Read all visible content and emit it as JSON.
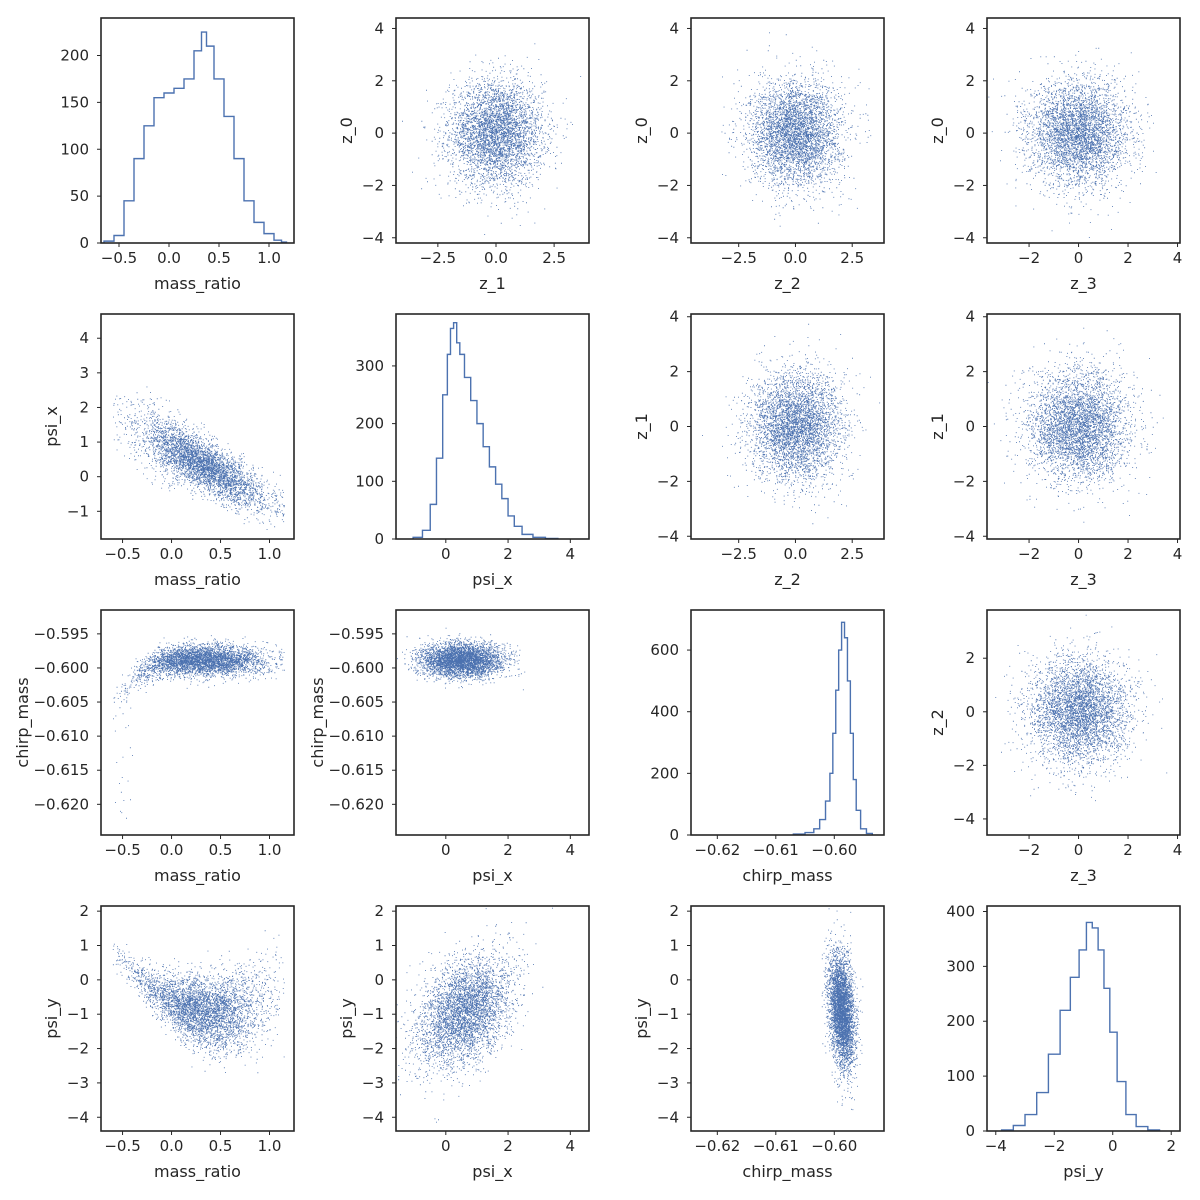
{
  "figure": {
    "background": "#ffffff",
    "marker_color": "#4c72b0",
    "frame_color": "#262626"
  },
  "chart_data": [
    {
      "id": "r0c0",
      "type": "histogram",
      "title": "",
      "xlabel": "mass_ratio",
      "ylabel": "",
      "xlim": [
        -0.68,
        1.25
      ],
      "ylim": [
        0,
        240
      ],
      "xticks": [
        -0.5,
        0.0,
        0.5,
        1.0
      ],
      "xtick_labels": [
        "−0.5",
        "0.0",
        "0.5",
        "1.0"
      ],
      "yticks": [
        0,
        50,
        100,
        150,
        200
      ],
      "ytick_labels": [
        "0",
        "50",
        "100",
        "150",
        "200"
      ],
      "x": [
        -0.6,
        -0.5,
        -0.4,
        -0.3,
        -0.2,
        -0.1,
        0.0,
        0.1,
        0.2,
        0.3,
        0.35,
        0.4,
        0.5,
        0.6,
        0.7,
        0.8,
        0.9,
        1.0,
        1.1,
        1.15
      ],
      "values": [
        2,
        8,
        45,
        90,
        125,
        155,
        160,
        165,
        175,
        205,
        225,
        210,
        175,
        135,
        90,
        45,
        22,
        10,
        3,
        1
      ]
    },
    {
      "id": "r0c1",
      "type": "scatter",
      "title": "",
      "xlabel": "z_1",
      "ylabel": "z_0",
      "xlim": [
        -4.3,
        4.0
      ],
      "ylim": [
        -4.2,
        4.4
      ],
      "xticks": [
        -2.5,
        0.0,
        2.5
      ],
      "xtick_labels": [
        "−2.5",
        "0.0",
        "2.5"
      ],
      "yticks": [
        -4,
        -2,
        0,
        2,
        4
      ],
      "ytick_labels": [
        "−4",
        "−2",
        "0",
        "2",
        "4"
      ],
      "distribution": {
        "form": "gaussian",
        "mean_x": 0.0,
        "mean_y": 0.0,
        "sd_x": 1.0,
        "sd_y": 1.0,
        "n": 4200
      }
    },
    {
      "id": "r0c2",
      "type": "scatter",
      "title": "",
      "xlabel": "z_2",
      "ylabel": "z_0",
      "xlim": [
        -4.6,
        3.9
      ],
      "ylim": [
        -4.2,
        4.4
      ],
      "xticks": [
        -2.5,
        0.0,
        2.5
      ],
      "xtick_labels": [
        "−2.5",
        "0.0",
        "2.5"
      ],
      "yticks": [
        -4,
        -2,
        0,
        2,
        4
      ],
      "ytick_labels": [
        "−4",
        "−2",
        "0",
        "2",
        "4"
      ],
      "distribution": {
        "form": "gaussian",
        "mean_x": 0.0,
        "mean_y": 0.0,
        "sd_x": 1.0,
        "sd_y": 1.0,
        "n": 4200
      }
    },
    {
      "id": "r0c3",
      "type": "scatter",
      "title": "",
      "xlabel": "z_3",
      "ylabel": "z_0",
      "xlim": [
        -3.7,
        4.1
      ],
      "ylim": [
        -4.2,
        4.4
      ],
      "xticks": [
        -2,
        0,
        2,
        4
      ],
      "xtick_labels": [
        "−2",
        "0",
        "2",
        "4"
      ],
      "yticks": [
        -4,
        -2,
        0,
        2,
        4
      ],
      "ytick_labels": [
        "−4",
        "−2",
        "0",
        "2",
        "4"
      ],
      "distribution": {
        "form": "gaussian",
        "mean_x": 0.0,
        "mean_y": 0.0,
        "sd_x": 1.0,
        "sd_y": 1.0,
        "n": 4200
      }
    },
    {
      "id": "r1c0",
      "type": "scatter",
      "title": "",
      "xlabel": "mass_ratio",
      "ylabel": "psi_x",
      "xlim": [
        -0.72,
        1.25
      ],
      "ylim": [
        -1.8,
        4.7
      ],
      "xticks": [
        -0.5,
        0.0,
        0.5,
        1.0
      ],
      "xtick_labels": [
        "−0.5",
        "0.0",
        "0.5",
        "1.0"
      ],
      "yticks": [
        -1,
        0,
        1,
        2,
        3,
        4
      ],
      "ytick_labels": [
        "−1",
        "0",
        "1",
        "2",
        "3",
        "4"
      ],
      "distribution": {
        "form": "curve",
        "x_mean": 0.3,
        "x_sd": 0.33,
        "x_min": -0.6,
        "x_max": 1.15,
        "curve": "psi_x",
        "n": 4200
      }
    },
    {
      "id": "r1c1",
      "type": "histogram",
      "title": "",
      "xlabel": "psi_x",
      "ylabel": "",
      "xlim": [
        -1.6,
        4.6
      ],
      "ylim": [
        0,
        390
      ],
      "xticks": [
        0,
        2,
        4
      ],
      "xtick_labels": [
        "0",
        "2",
        "4"
      ],
      "yticks": [
        0,
        100,
        200,
        300
      ],
      "ytick_labels": [
        "0",
        "100",
        "200",
        "300"
      ],
      "x": [
        -0.9,
        -0.6,
        -0.4,
        -0.2,
        0.0,
        0.1,
        0.2,
        0.3,
        0.4,
        0.5,
        0.7,
        0.9,
        1.1,
        1.3,
        1.5,
        1.7,
        1.9,
        2.1,
        2.3,
        2.6,
        3.0,
        3.4
      ],
      "values": [
        3,
        15,
        60,
        140,
        250,
        320,
        365,
        375,
        340,
        320,
        280,
        240,
        200,
        160,
        125,
        95,
        70,
        40,
        22,
        8,
        3,
        1
      ]
    },
    {
      "id": "r1c2",
      "type": "scatter",
      "title": "",
      "xlabel": "z_2",
      "ylabel": "z_1",
      "xlim": [
        -4.6,
        3.9
      ],
      "ylim": [
        -4.1,
        4.1
      ],
      "xticks": [
        -2.5,
        0.0,
        2.5
      ],
      "xtick_labels": [
        "−2.5",
        "0.0",
        "2.5"
      ],
      "yticks": [
        -4,
        -2,
        0,
        2,
        4
      ],
      "ytick_labels": [
        "−4",
        "−2",
        "0",
        "2",
        "4"
      ],
      "distribution": {
        "form": "gaussian",
        "mean_x": 0.0,
        "mean_y": 0.0,
        "sd_x": 1.0,
        "sd_y": 1.0,
        "n": 4200
      }
    },
    {
      "id": "r1c3",
      "type": "scatter",
      "title": "",
      "xlabel": "z_3",
      "ylabel": "z_1",
      "xlim": [
        -3.7,
        4.1
      ],
      "ylim": [
        -4.1,
        4.1
      ],
      "xticks": [
        -2,
        0,
        2,
        4
      ],
      "xtick_labels": [
        "−2",
        "0",
        "2",
        "4"
      ],
      "yticks": [
        -4,
        -2,
        0,
        2,
        4
      ],
      "ytick_labels": [
        "−4",
        "−2",
        "0",
        "2",
        "4"
      ],
      "distribution": {
        "form": "gaussian",
        "mean_x": 0.0,
        "mean_y": 0.0,
        "sd_x": 1.0,
        "sd_y": 1.0,
        "n": 4200
      }
    },
    {
      "id": "r2c0",
      "type": "scatter",
      "title": "",
      "xlabel": "mass_ratio",
      "ylabel": "chirp_mass",
      "xlim": [
        -0.72,
        1.25
      ],
      "ylim": [
        -0.6245,
        -0.5915
      ],
      "xticks": [
        -0.5,
        0.0,
        0.5,
        1.0
      ],
      "xtick_labels": [
        "−0.5",
        "0.0",
        "0.5",
        "1.0"
      ],
      "yticks": [
        -0.62,
        -0.615,
        -0.61,
        -0.605,
        -0.6,
        -0.595
      ],
      "ytick_labels": [
        "−0.620",
        "−0.615",
        "−0.610",
        "−0.605",
        "−0.600",
        "−0.595"
      ],
      "distribution": {
        "form": "curve",
        "x_mean": 0.3,
        "x_sd": 0.33,
        "x_min": -0.6,
        "x_max": 1.15,
        "curve": "chirp",
        "n": 4200
      }
    },
    {
      "id": "r2c1",
      "type": "scatter",
      "title": "",
      "xlabel": "psi_x",
      "ylabel": "chirp_mass",
      "xlim": [
        -1.6,
        4.6
      ],
      "ylim": [
        -0.6245,
        -0.5915
      ],
      "xticks": [
        0,
        2,
        4
      ],
      "xtick_labels": [
        "0",
        "2",
        "4"
      ],
      "yticks": [
        -0.62,
        -0.615,
        -0.61,
        -0.605,
        -0.6,
        -0.595
      ],
      "ytick_labels": [
        "−0.620",
        "−0.615",
        "−0.610",
        "−0.605",
        "−0.600",
        "−0.595"
      ],
      "distribution": {
        "form": "gaussian",
        "mean_x": 0.5,
        "mean_y": -0.5988,
        "sd_x": 0.65,
        "sd_y": 0.0012,
        "n": 4200
      }
    },
    {
      "id": "r2c2",
      "type": "histogram",
      "title": "",
      "xlabel": "chirp_mass",
      "ylabel": "",
      "xlim": [
        -0.6245,
        -0.5915
      ],
      "ylim": [
        0,
        730
      ],
      "xticks": [
        -0.62,
        -0.61,
        -0.6
      ],
      "xtick_labels": [
        "−0.62",
        "−0.61",
        "−0.60"
      ],
      "yticks": [
        0,
        200,
        400,
        600
      ],
      "ytick_labels": [
        "0",
        "200",
        "400",
        "600"
      ],
      "x": [
        -0.606,
        -0.604,
        -0.603,
        -0.602,
        -0.601,
        -0.6005,
        -0.6,
        -0.5995,
        -0.599,
        -0.5985,
        -0.598,
        -0.5975,
        -0.597,
        -0.5965,
        -0.596,
        -0.595,
        -0.594
      ],
      "values": [
        3,
        8,
        20,
        50,
        110,
        200,
        330,
        470,
        600,
        690,
        640,
        500,
        330,
        180,
        80,
        20,
        5
      ]
    },
    {
      "id": "r2c3",
      "type": "scatter",
      "title": "",
      "xlabel": "z_3",
      "ylabel": "z_2",
      "xlim": [
        -3.7,
        4.1
      ],
      "ylim": [
        -4.6,
        3.8
      ],
      "xticks": [
        -2,
        0,
        2,
        4
      ],
      "xtick_labels": [
        "−2",
        "0",
        "2",
        "4"
      ],
      "yticks": [
        -4,
        -2,
        0,
        2
      ],
      "ytick_labels": [
        "−4",
        "−2",
        "0",
        "2"
      ],
      "distribution": {
        "form": "gaussian",
        "mean_x": 0.0,
        "mean_y": 0.0,
        "sd_x": 1.0,
        "sd_y": 1.0,
        "n": 4200
      }
    },
    {
      "id": "r3c0",
      "type": "scatter",
      "title": "",
      "xlabel": "mass_ratio",
      "ylabel": "psi_y",
      "xlim": [
        -0.72,
        1.25
      ],
      "ylim": [
        -4.4,
        2.15
      ],
      "xticks": [
        -0.5,
        0.0,
        0.5,
        1.0
      ],
      "xtick_labels": [
        "−0.5",
        "0.0",
        "0.5",
        "1.0"
      ],
      "yticks": [
        -4,
        -3,
        -2,
        -1,
        0,
        1,
        2
      ],
      "ytick_labels": [
        "−4",
        "−3",
        "−2",
        "−1",
        "0",
        "1",
        "2"
      ],
      "distribution": {
        "form": "curve",
        "x_mean": 0.3,
        "x_sd": 0.33,
        "x_min": -0.6,
        "x_max": 1.15,
        "curve": "psi_y",
        "n": 4200
      }
    },
    {
      "id": "r3c1",
      "type": "scatter",
      "title": "",
      "xlabel": "psi_x",
      "ylabel": "psi_y",
      "xlim": [
        -1.6,
        4.6
      ],
      "ylim": [
        -4.4,
        2.15
      ],
      "xticks": [
        0,
        2,
        4
      ],
      "xtick_labels": [
        "0",
        "2",
        "4"
      ],
      "yticks": [
        -4,
        -3,
        -2,
        -1,
        0,
        1,
        2
      ],
      "ytick_labels": [
        "−4",
        "−3",
        "−2",
        "−1",
        "0",
        "1",
        "2"
      ],
      "distribution": {
        "form": "gaussian",
        "mean_x": 0.6,
        "mean_y": -0.9,
        "sd_x": 0.75,
        "sd_y": 0.8,
        "corr": 0.4,
        "n": 4200
      }
    },
    {
      "id": "r3c2",
      "type": "scatter",
      "title": "",
      "xlabel": "chirp_mass",
      "ylabel": "psi_y",
      "xlim": [
        -0.6245,
        -0.5915
      ],
      "ylim": [
        -4.4,
        2.15
      ],
      "xticks": [
        -0.62,
        -0.61,
        -0.6
      ],
      "xtick_labels": [
        "−0.62",
        "−0.61",
        "−0.60"
      ],
      "yticks": [
        -4,
        -3,
        -2,
        -1,
        0,
        1,
        2
      ],
      "ytick_labels": [
        "−4",
        "−3",
        "−2",
        "−1",
        "0",
        "1",
        "2"
      ],
      "distribution": {
        "form": "gaussian",
        "mean_x": -0.5988,
        "mean_y": -0.9,
        "sd_x": 0.0011,
        "sd_y": 0.8,
        "corr": -0.3,
        "n": 4200
      }
    },
    {
      "id": "r3c3",
      "type": "histogram",
      "title": "",
      "xlabel": "psi_y",
      "ylabel": "",
      "xlim": [
        -4.3,
        2.3
      ],
      "ylim": [
        0,
        410
      ],
      "xticks": [
        -4,
        -2,
        0,
        2
      ],
      "xtick_labels": [
        "−4",
        "−2",
        "0",
        "2"
      ],
      "yticks": [
        0,
        100,
        200,
        300,
        400
      ],
      "ytick_labels": [
        "0",
        "100",
        "200",
        "300",
        "400"
      ],
      "x": [
        -3.6,
        -3.2,
        -2.8,
        -2.4,
        -2.0,
        -1.6,
        -1.3,
        -1.0,
        -0.8,
        -0.6,
        -0.4,
        -0.2,
        0.0,
        0.3,
        0.6,
        1.0,
        1.4
      ],
      "values": [
        2,
        10,
        30,
        70,
        140,
        220,
        280,
        330,
        380,
        370,
        330,
        260,
        180,
        90,
        30,
        8,
        2
      ]
    }
  ]
}
